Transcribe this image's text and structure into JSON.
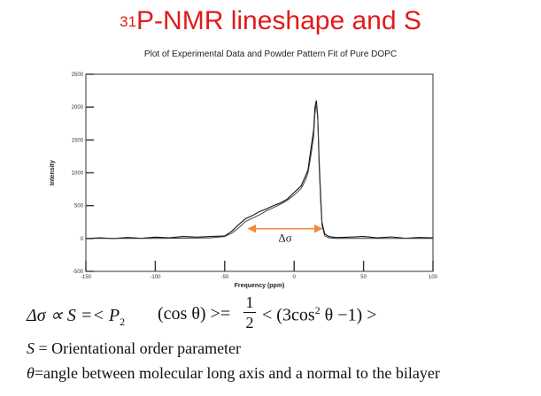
{
  "slide": {
    "title_sup": "31",
    "title_main": "P-NMR lineshape and S"
  },
  "chart_data": {
    "type": "line",
    "title": "Plot of Experimental Data and Powder Pattern Fit of Pure DOPC",
    "xlabel": "Frequency (ppm)",
    "ylabel": "Intensity",
    "xlim": [
      -150,
      100
    ],
    "ylim": [
      -500,
      2500
    ],
    "x_ticks": [
      -150,
      -100,
      -50,
      0,
      50,
      100
    ],
    "y_ticks": [
      -500,
      0,
      500,
      1000,
      1500,
      2000,
      2500
    ],
    "grid": false,
    "annotation": {
      "text": "Δσ",
      "x_from": -33,
      "x_to": 20,
      "y": 150,
      "color": "#ef8a3c"
    },
    "series": [
      {
        "role": "experimental",
        "x": [
          -150,
          -140,
          -130,
          -120,
          -110,
          -100,
          -90,
          -80,
          -70,
          -60,
          -50,
          -45,
          -40,
          -35,
          -30,
          -25,
          -20,
          -15,
          -10,
          -5,
          0,
          5,
          8,
          10,
          12,
          14,
          15,
          16,
          17,
          18,
          19,
          20,
          22,
          25,
          30,
          40,
          50,
          60,
          70,
          80,
          90,
          100
        ],
        "y": [
          0,
          10,
          0,
          15,
          5,
          20,
          10,
          30,
          20,
          30,
          40,
          110,
          210,
          300,
          350,
          410,
          450,
          500,
          540,
          600,
          700,
          800,
          940,
          1050,
          1350,
          1650,
          2000,
          2100,
          1850,
          1200,
          700,
          250,
          70,
          30,
          15,
          20,
          30,
          10,
          25,
          5,
          15,
          10
        ]
      },
      {
        "role": "fit",
        "x": [
          -150,
          -100,
          -60,
          -50,
          -45,
          -40,
          -35,
          -30,
          -25,
          -20,
          -15,
          -10,
          -5,
          0,
          5,
          8,
          10,
          12,
          14,
          15,
          16,
          17,
          18,
          19,
          20,
          22,
          25,
          30,
          50,
          100
        ],
        "y": [
          0,
          0,
          10,
          30,
          80,
          160,
          260,
          310,
          360,
          420,
          470,
          520,
          580,
          660,
          760,
          880,
          1000,
          1250,
          1550,
          1900,
          2050,
          1800,
          1100,
          600,
          200,
          40,
          10,
          0,
          0,
          0
        ]
      }
    ]
  },
  "equation": {
    "lhs": "Δσ ∝ S =< P",
    "p_sub": "2",
    "mid": "(cos θ) >=",
    "frac_num": "1",
    "frac_den": "2",
    "rhs_a": "< (3cos",
    "rhs_sup": "2",
    "rhs_b": " θ −1) >"
  },
  "definitions": {
    "s_symbol": "S",
    "s_text": " = Orientational order parameter",
    "theta_symbol": "θ",
    "theta_text": "=angle between molecular long axis and a normal to the bilayer"
  }
}
